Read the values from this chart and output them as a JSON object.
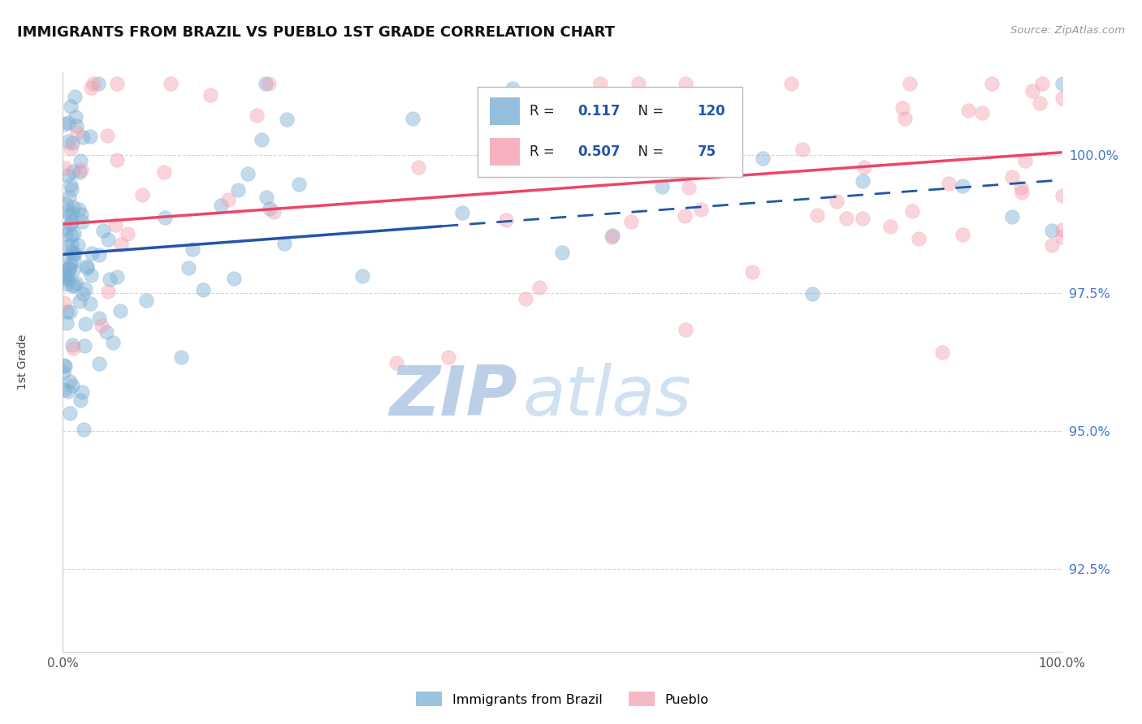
{
  "title": "IMMIGRANTS FROM BRAZIL VS PUEBLO 1ST GRADE CORRELATION CHART",
  "source_text": "Source: ZipAtlas.com",
  "ylabel": "1st Grade",
  "legend_label1": "Immigrants from Brazil",
  "legend_label2": "Pueblo",
  "R1": 0.117,
  "N1": 120,
  "R2": 0.507,
  "N2": 75,
  "blue_color": "#7BAED4",
  "pink_color": "#F4A0B0",
  "trend_blue": "#2255AA",
  "trend_pink": "#EE4466",
  "watermark_zip_color": "#B8CEE8",
  "watermark_atlas_color": "#A0C0E0",
  "xmin": 0.0,
  "xmax": 100.0,
  "ymin": 91.0,
  "ymax": 101.5,
  "yticks": [
    92.5,
    95.0,
    97.5,
    100.0
  ],
  "ytick_labels": [
    "92.5%",
    "95.0%",
    "97.5%",
    "100.0%"
  ],
  "grid_color": "#CCCCCC",
  "blue_trend_y0": 98.2,
  "blue_trend_y1": 99.55,
  "blue_solid_end_x": 38.0,
  "pink_trend_y0": 98.75,
  "pink_trend_y1": 100.05,
  "legend_R1_color": "#2255AA",
  "legend_R2_color": "#2255AA",
  "source_color": "#999999",
  "title_color": "#111111",
  "ytick_color": "#4477CC"
}
